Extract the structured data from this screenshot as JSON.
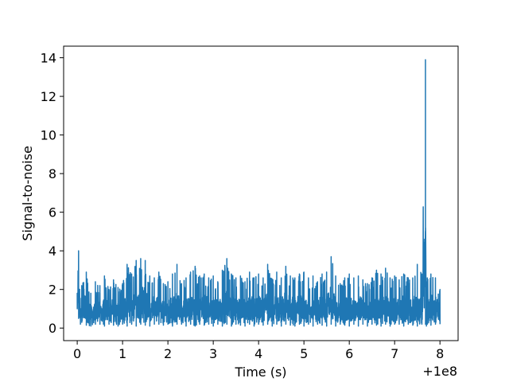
{
  "chart_data": {
    "type": "line",
    "xlabel": "Time (s)",
    "ylabel": "Signal-to-noise",
    "x_offset_label": "+1e8",
    "xlim": [
      -0.3,
      8.4
    ],
    "ylim": [
      -0.65,
      14.6
    ],
    "x_ticks": [
      "0",
      "1",
      "2",
      "3",
      "4",
      "5",
      "6",
      "7",
      "8"
    ],
    "y_ticks": [
      "0",
      "2",
      "4",
      "6",
      "8",
      "10",
      "12",
      "14"
    ],
    "grid": false,
    "color": "#1f77b4",
    "series": [
      {
        "x": [
          0.0,
          0.03,
          0.07,
          0.1,
          0.2,
          0.3,
          0.4,
          0.5,
          0.6,
          0.7,
          0.8,
          0.9,
          1.0,
          1.1,
          1.2,
          1.3,
          1.4,
          1.5,
          1.6,
          1.7,
          1.8,
          1.9,
          2.0,
          2.1,
          2.2,
          2.3,
          2.4,
          2.5,
          2.6,
          2.7,
          2.8,
          2.9,
          3.0,
          3.1,
          3.2,
          3.3,
          3.4,
          3.5,
          3.6,
          3.7,
          3.8,
          3.9,
          4.0,
          4.1,
          4.2,
          4.3,
          4.4,
          4.5,
          4.6,
          4.7,
          4.8,
          4.9,
          5.0,
          5.1,
          5.2,
          5.3,
          5.4,
          5.5,
          5.6,
          5.7,
          5.8,
          5.9,
          6.0,
          6.1,
          6.2,
          6.3,
          6.4,
          6.5,
          6.6,
          6.7,
          6.8,
          6.9,
          7.0,
          7.1,
          7.2,
          7.3,
          7.4,
          7.5,
          7.6,
          7.68,
          7.7,
          7.72,
          7.8,
          7.9,
          8.0
        ],
        "y": [
          1.8,
          4.0,
          1.0,
          2.2,
          2.9,
          1.8,
          2.4,
          2.2,
          2.7,
          2.0,
          2.5,
          2.1,
          2.3,
          3.3,
          2.8,
          3.5,
          3.6,
          3.5,
          2.7,
          2.6,
          2.9,
          2.3,
          2.4,
          2.8,
          3.3,
          2.3,
          2.6,
          2.9,
          3.2,
          2.7,
          2.8,
          2.6,
          2.7,
          2.4,
          3.0,
          3.6,
          2.8,
          2.6,
          2.7,
          2.4,
          2.9,
          2.6,
          2.8,
          2.6,
          3.3,
          2.5,
          2.9,
          2.6,
          3.2,
          2.7,
          2.6,
          2.8,
          2.9,
          2.6,
          2.7,
          2.4,
          2.8,
          2.9,
          3.7,
          2.7,
          2.3,
          2.6,
          2.8,
          2.6,
          2.7,
          2.5,
          2.3,
          2.6,
          3.0,
          2.8,
          3.1,
          2.6,
          2.7,
          2.5,
          2.8,
          2.6,
          2.6,
          3.3,
          2.8,
          13.9,
          2.4,
          2.6,
          2.8,
          2.6,
          2.0
        ],
        "y_min": [
          1.0,
          0.5,
          0.2,
          0.3,
          0.15,
          0.1,
          0.2,
          0.2,
          0.1,
          0.2,
          0.15,
          0.1,
          0.2,
          0.1,
          0.2,
          0.1,
          0.2,
          0.15,
          0.1,
          0.2,
          0.2,
          0.15,
          0.2,
          0.1,
          0.2,
          0.2,
          0.1,
          0.2,
          0.1,
          0.2,
          0.15,
          0.2,
          0.1,
          0.2,
          0.1,
          0.2,
          0.1,
          0.2,
          0.15,
          0.1,
          0.2,
          0.1,
          0.2,
          0.15,
          0.2,
          0.1,
          0.2,
          0.1,
          0.2,
          0.15,
          0.1,
          0.2,
          0.1,
          0.2,
          0.1,
          0.2,
          0.15,
          0.1,
          0.2,
          0.1,
          0.2,
          0.15,
          0.1,
          0.2,
          0.1,
          0.2,
          0.1,
          0.2,
          0.15,
          0.1,
          0.2,
          0.1,
          0.2,
          0.2,
          0.1,
          0.2,
          0.15,
          0.1,
          0.2,
          0.2,
          0.1,
          0.2,
          0.15,
          0.2,
          0.2
        ]
      }
    ]
  }
}
